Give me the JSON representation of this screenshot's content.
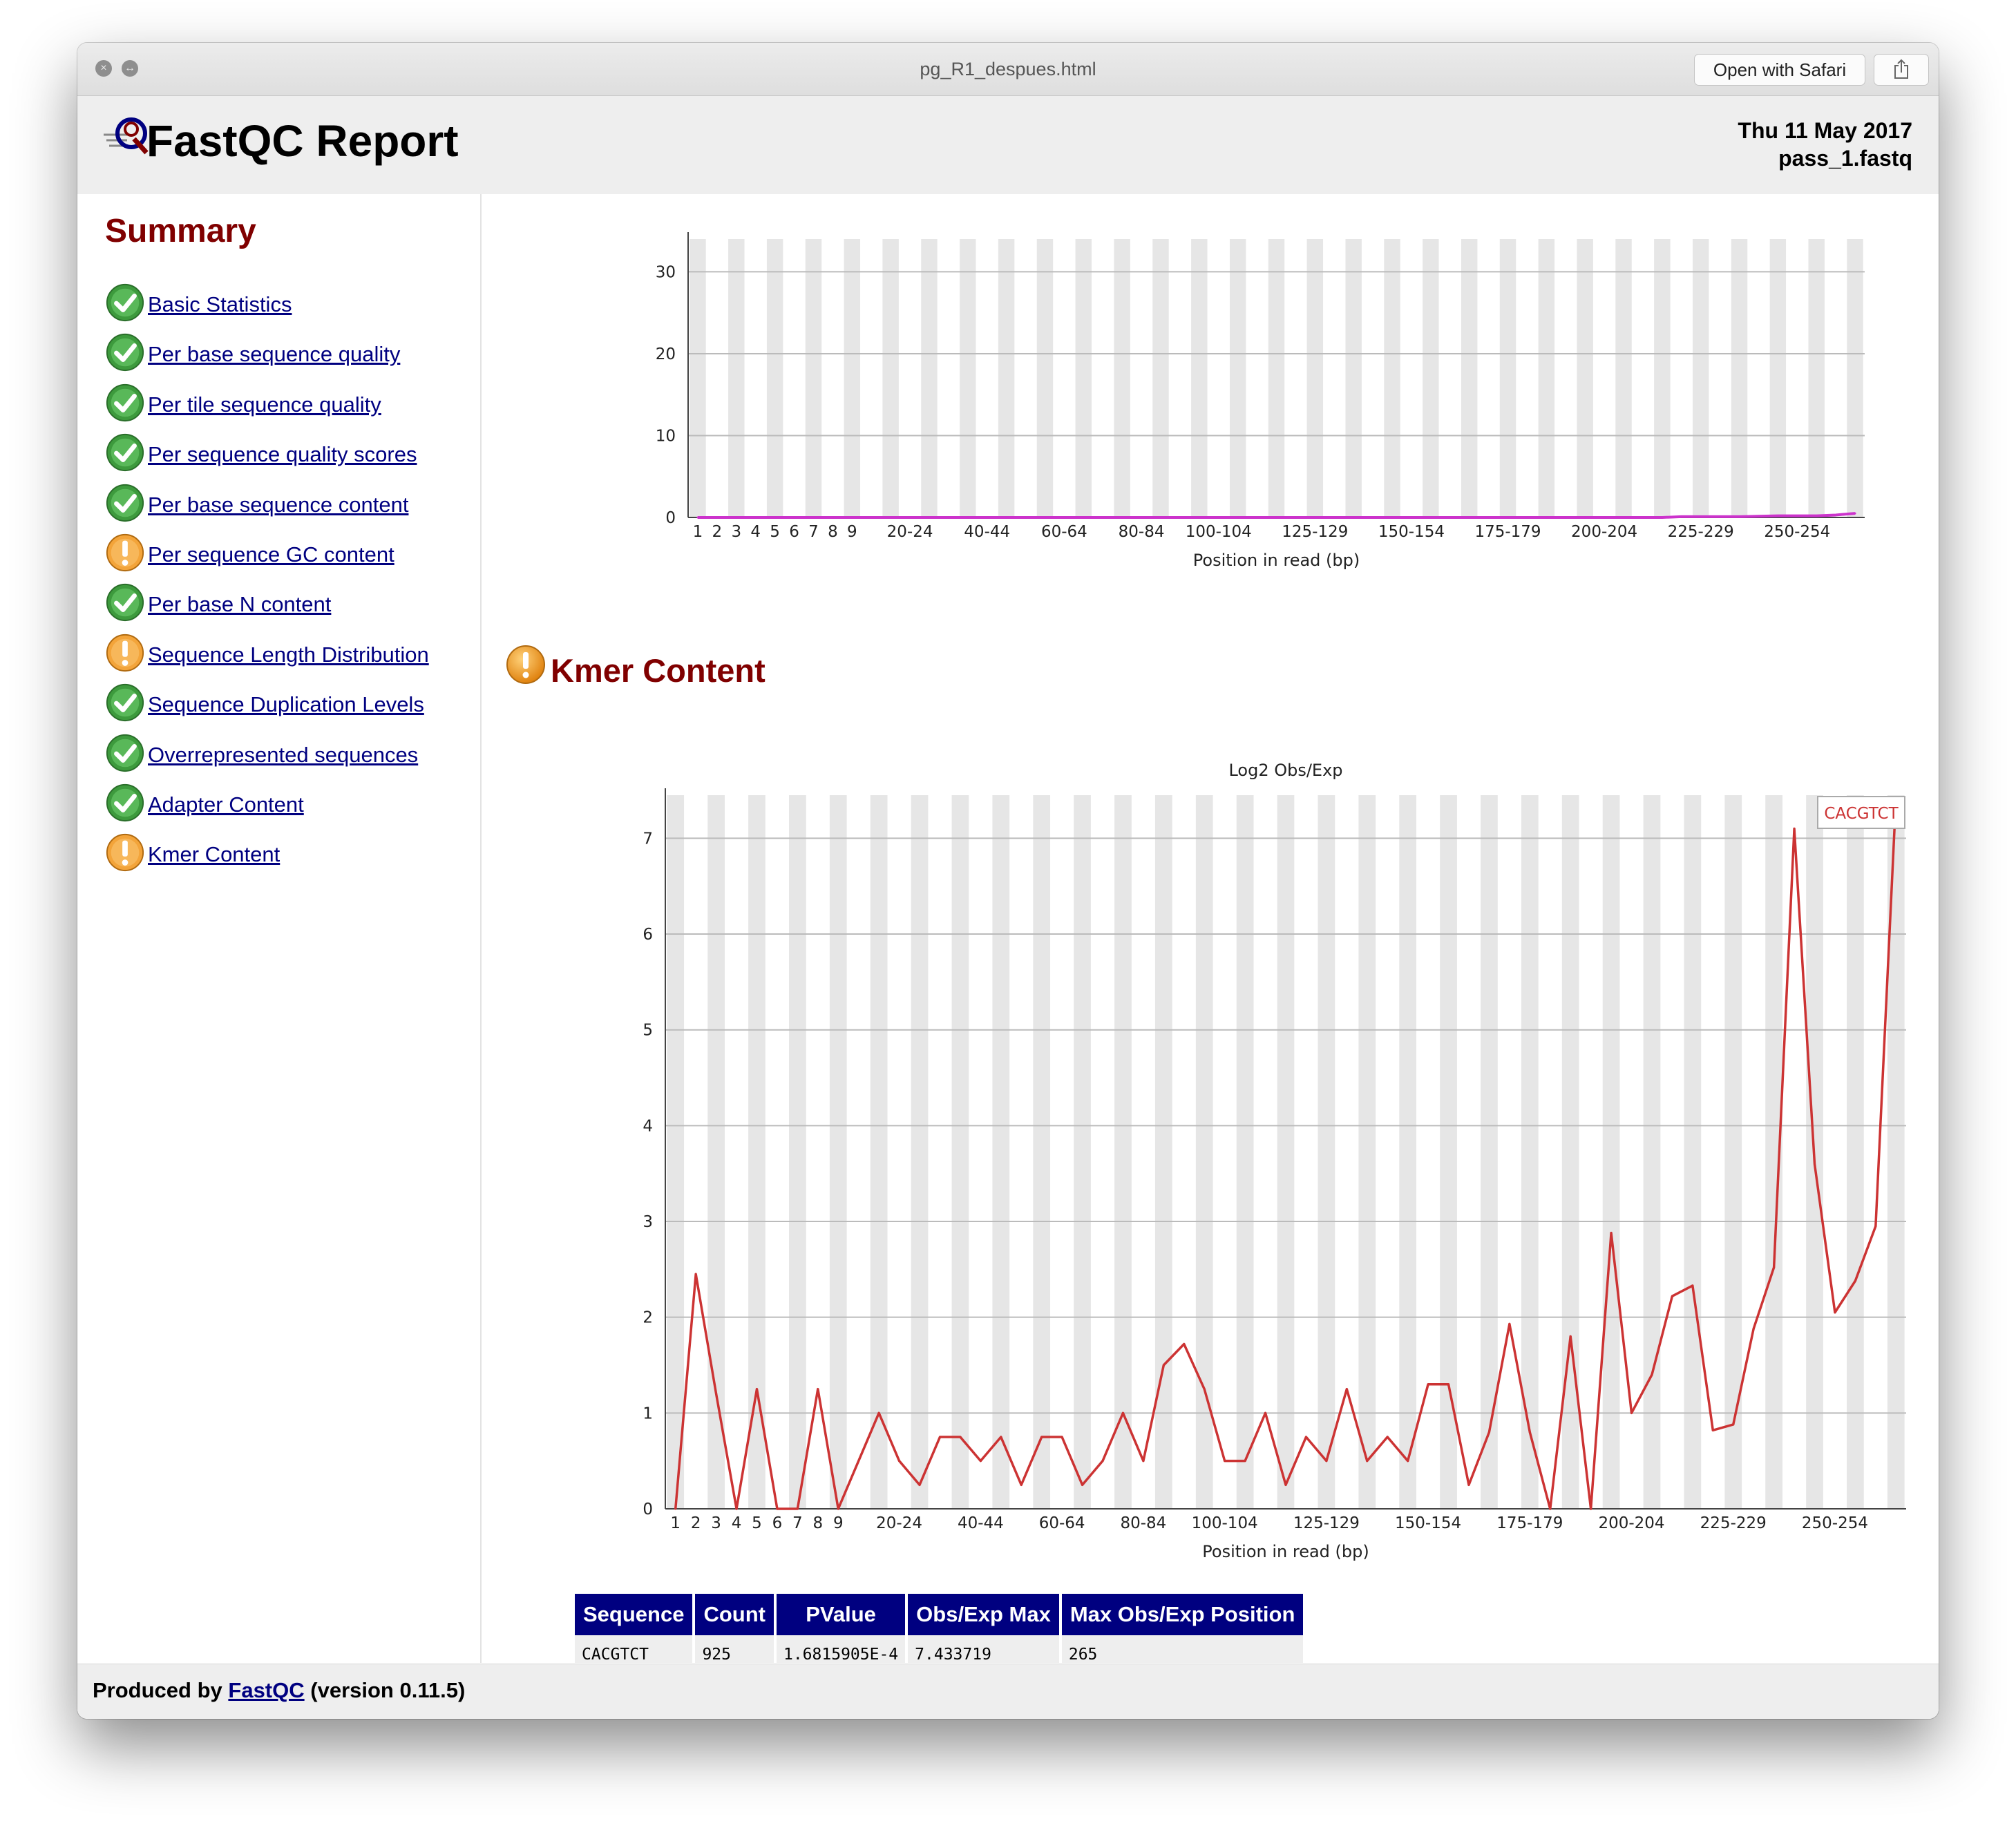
{
  "window": {
    "title": "pg_R1_despues.html",
    "open_with_label": "Open with Safari",
    "close_icon": "close-icon",
    "fullscreen_icon": "fullscreen-icon",
    "share_icon": "share-icon"
  },
  "header": {
    "title": "FastQC Report",
    "date": "Thu 11 May 2017",
    "filename": "pass_1.fastq"
  },
  "summary": {
    "title": "Summary",
    "items": [
      {
        "label": "Basic Statistics",
        "status": "pass"
      },
      {
        "label": "Per base sequence quality",
        "status": "pass"
      },
      {
        "label": "Per tile sequence quality",
        "status": "pass"
      },
      {
        "label": "Per sequence quality scores",
        "status": "pass"
      },
      {
        "label": "Per base sequence content",
        "status": "pass"
      },
      {
        "label": "Per sequence GC content",
        "status": "warn"
      },
      {
        "label": "Per base N content",
        "status": "pass"
      },
      {
        "label": "Sequence Length Distribution",
        "status": "warn"
      },
      {
        "label": "Sequence Duplication Levels",
        "status": "pass"
      },
      {
        "label": "Overrepresented sequences",
        "status": "pass"
      },
      {
        "label": "Adapter Content",
        "status": "pass"
      },
      {
        "label": "Kmer Content",
        "status": "warn"
      }
    ]
  },
  "kmer_section": {
    "title": "Kmer Content",
    "status": "warn"
  },
  "chart_data": [
    {
      "type": "line",
      "title": "",
      "xlabel": "Position in read (bp)",
      "ylabel": "",
      "ylim": [
        0,
        34
      ],
      "yticks": [
        0,
        10,
        20,
        30
      ],
      "grid": true,
      "categories": [
        "1",
        "2",
        "3",
        "4",
        "5",
        "6",
        "7",
        "8",
        "9",
        "10-14",
        "15-19",
        "20-24",
        "25-29",
        "30-34",
        "35-39",
        "40-44",
        "45-49",
        "50-54",
        "55-59",
        "60-64",
        "65-69",
        "70-74",
        "75-79",
        "80-84",
        "85-89",
        "90-94",
        "95-99",
        "100-104",
        "105-109",
        "110-114",
        "115-119",
        "120-124",
        "125-129",
        "130-134",
        "135-139",
        "140-144",
        "145-149",
        "150-154",
        "155-159",
        "160-164",
        "165-169",
        "170-174",
        "175-179",
        "180-184",
        "185-189",
        "190-194",
        "195-199",
        "200-204",
        "205-209",
        "210-214",
        "215-219",
        "220-224",
        "225-229",
        "230-234",
        "235-239",
        "240-244",
        "245-249",
        "250-254",
        "255-259",
        "260-264",
        "265-269"
      ],
      "x_tick_labels": [
        "1",
        "2",
        "3",
        "4",
        "5",
        "6",
        "7",
        "8",
        "9",
        "20-24",
        "40-44",
        "60-64",
        "80-84",
        "100-104",
        "125-129",
        "150-154",
        "175-179",
        "200-204",
        "225-229",
        "250-254"
      ],
      "series": [
        {
          "color": "#cc33cc",
          "values": [
            0,
            0,
            0,
            0,
            0,
            0,
            0,
            0,
            0,
            0,
            0,
            0,
            0,
            0,
            0,
            0,
            0,
            0,
            0,
            0,
            0,
            0,
            0,
            0,
            0,
            0,
            0,
            0,
            0,
            0,
            0,
            0,
            0,
            0,
            0,
            0,
            0,
            0,
            0,
            0,
            0,
            0,
            0,
            0,
            0,
            0,
            0,
            0,
            0,
            0,
            0,
            0.1,
            0.1,
            0.1,
            0.1,
            0.15,
            0.2,
            0.2,
            0.2,
            0.3,
            0.5
          ]
        }
      ]
    },
    {
      "type": "line",
      "title": "Log2 Obs/Exp",
      "xlabel": "Position in read (bp)",
      "ylabel": "",
      "ylim": [
        0,
        7.45
      ],
      "yticks": [
        0,
        1,
        2,
        3,
        4,
        5,
        6,
        7
      ],
      "grid": true,
      "legend": "top-right",
      "categories": [
        "1",
        "2",
        "3",
        "4",
        "5",
        "6",
        "7",
        "8",
        "9",
        "10-14",
        "15-19",
        "20-24",
        "25-29",
        "30-34",
        "35-39",
        "40-44",
        "45-49",
        "50-54",
        "55-59",
        "60-64",
        "65-69",
        "70-74",
        "75-79",
        "80-84",
        "85-89",
        "90-94",
        "95-99",
        "100-104",
        "105-109",
        "110-114",
        "115-119",
        "120-124",
        "125-129",
        "130-134",
        "135-139",
        "140-144",
        "145-149",
        "150-154",
        "155-159",
        "160-164",
        "165-169",
        "170-174",
        "175-179",
        "180-184",
        "185-189",
        "190-194",
        "195-199",
        "200-204",
        "205-209",
        "210-214",
        "215-219",
        "220-224",
        "225-229",
        "230-234",
        "235-239",
        "240-244",
        "245-249",
        "250-254",
        "255-259",
        "260-264",
        "265-269"
      ],
      "x_tick_labels": [
        "1",
        "2",
        "3",
        "4",
        "5",
        "6",
        "7",
        "8",
        "9",
        "20-24",
        "40-44",
        "60-64",
        "80-84",
        "100-104",
        "125-129",
        "150-154",
        "175-179",
        "200-204",
        "225-229",
        "250-254"
      ],
      "series": [
        {
          "name": "CACGTCT",
          "color": "#cc3333",
          "values": [
            0,
            2.45,
            1.2,
            0,
            1.25,
            0,
            0,
            1.25,
            0,
            0.5,
            1.0,
            0.5,
            0.25,
            0.75,
            0.75,
            0.5,
            0.75,
            0.25,
            0.75,
            0.75,
            0.25,
            0.5,
            1.0,
            0.5,
            1.5,
            1.72,
            1.25,
            0.5,
            0.5,
            1.0,
            0.25,
            0.75,
            0.5,
            1.25,
            0.5,
            0.75,
            0.5,
            1.3,
            1.3,
            0.25,
            0.8,
            1.93,
            0.8,
            0,
            1.8,
            0,
            2.88,
            1.0,
            1.4,
            2.22,
            2.33,
            0.82,
            0.88,
            1.88,
            2.52,
            7.1,
            3.6,
            2.05,
            2.38,
            2.95,
            7.43
          ]
        }
      ]
    }
  ],
  "kmer_table": {
    "headers": [
      "Sequence",
      "Count",
      "PValue",
      "Obs/Exp Max",
      "Max Obs/Exp Position"
    ],
    "rows": [
      [
        "CACGTCT",
        "925",
        "1.6815905E-4",
        "7.433719",
        "265"
      ]
    ]
  },
  "footer": {
    "prefix": "Produced by",
    "link": "FastQC",
    "suffix": "(version 0.11.5)"
  }
}
